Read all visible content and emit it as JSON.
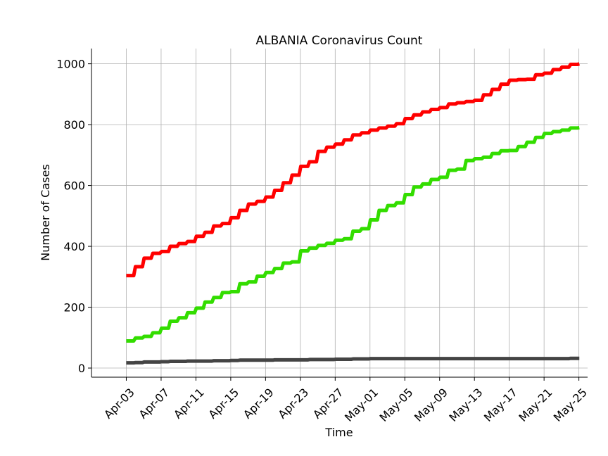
{
  "chart_data": {
    "type": "line",
    "title": "ALBANIA Coronavirus Count",
    "xlabel": "Time",
    "ylabel": "Number of Cases",
    "ylim": [
      -30,
      1050
    ],
    "xlim": [
      "2020-03-30",
      "2020-05-26"
    ],
    "grid": true,
    "legend": "none",
    "x_ticks": [
      "Apr-03",
      "Apr-07",
      "Apr-11",
      "Apr-15",
      "Apr-19",
      "Apr-23",
      "Apr-27",
      "May-01",
      "May-05",
      "May-09",
      "May-13",
      "May-17",
      "May-21",
      "May-25"
    ],
    "x_tick_dates": [
      "2020-04-03",
      "2020-04-07",
      "2020-04-11",
      "2020-04-15",
      "2020-04-19",
      "2020-04-23",
      "2020-04-27",
      "2020-05-01",
      "2020-05-05",
      "2020-05-09",
      "2020-05-13",
      "2020-05-17",
      "2020-05-21",
      "2020-05-25"
    ],
    "y_ticks": [
      0,
      200,
      400,
      600,
      800,
      1000
    ],
    "x": [
      "2020-04-03",
      "2020-04-04",
      "2020-04-05",
      "2020-04-06",
      "2020-04-07",
      "2020-04-08",
      "2020-04-09",
      "2020-04-10",
      "2020-04-11",
      "2020-04-12",
      "2020-04-13",
      "2020-04-14",
      "2020-04-15",
      "2020-04-16",
      "2020-04-17",
      "2020-04-18",
      "2020-04-19",
      "2020-04-20",
      "2020-04-21",
      "2020-04-22",
      "2020-04-23",
      "2020-04-24",
      "2020-04-25",
      "2020-04-26",
      "2020-04-27",
      "2020-04-28",
      "2020-04-29",
      "2020-04-30",
      "2020-05-01",
      "2020-05-02",
      "2020-05-03",
      "2020-05-04",
      "2020-05-05",
      "2020-05-06",
      "2020-05-07",
      "2020-05-08",
      "2020-05-09",
      "2020-05-10",
      "2020-05-11",
      "2020-05-12",
      "2020-05-13",
      "2020-05-14",
      "2020-05-15",
      "2020-05-16",
      "2020-05-17",
      "2020-05-18",
      "2020-05-19",
      "2020-05-20",
      "2020-05-21",
      "2020-05-22",
      "2020-05-23",
      "2020-05-24",
      "2020-05-25"
    ],
    "series": [
      {
        "color": "#ff0000",
        "values": [
          304,
          333,
          361,
          377,
          383,
          400,
          409,
          416,
          433,
          446,
          467,
          475,
          494,
          518,
          539,
          548,
          562,
          584,
          609,
          634,
          663,
          678,
          712,
          726,
          736,
          750,
          766,
          773,
          782,
          789,
          795,
          803,
          820,
          832,
          842,
          850,
          856,
          868,
          872,
          876,
          880,
          898,
          916,
          933,
          946,
          948,
          949,
          964,
          969,
          981,
          989,
          998,
          1000
        ]
      },
      {
        "color": "#33dd00",
        "values": [
          89,
          99,
          104,
          116,
          131,
          154,
          165,
          182,
          197,
          217,
          232,
          248,
          251,
          277,
          283,
          302,
          314,
          327,
          345,
          349,
          385,
          394,
          403,
          410,
          420,
          425,
          450,
          458,
          487,
          518,
          534,
          543,
          570,
          595,
          605,
          620,
          627,
          650,
          654,
          682,
          688,
          693,
          705,
          714,
          715,
          728,
          742,
          758,
          771,
          777,
          782,
          789,
          790
        ]
      },
      {
        "color": "#444444",
        "values": [
          17,
          18,
          20,
          20,
          21,
          22,
          22,
          23,
          23,
          23,
          24,
          24,
          25,
          26,
          26,
          26,
          26,
          27,
          27,
          27,
          27,
          28,
          28,
          28,
          29,
          29,
          30,
          30,
          31,
          31,
          31,
          31,
          31,
          31,
          31,
          31,
          31,
          31,
          31,
          31,
          31,
          31,
          31,
          31,
          31,
          31,
          31,
          31,
          31,
          31,
          31,
          32,
          32
        ]
      }
    ]
  }
}
